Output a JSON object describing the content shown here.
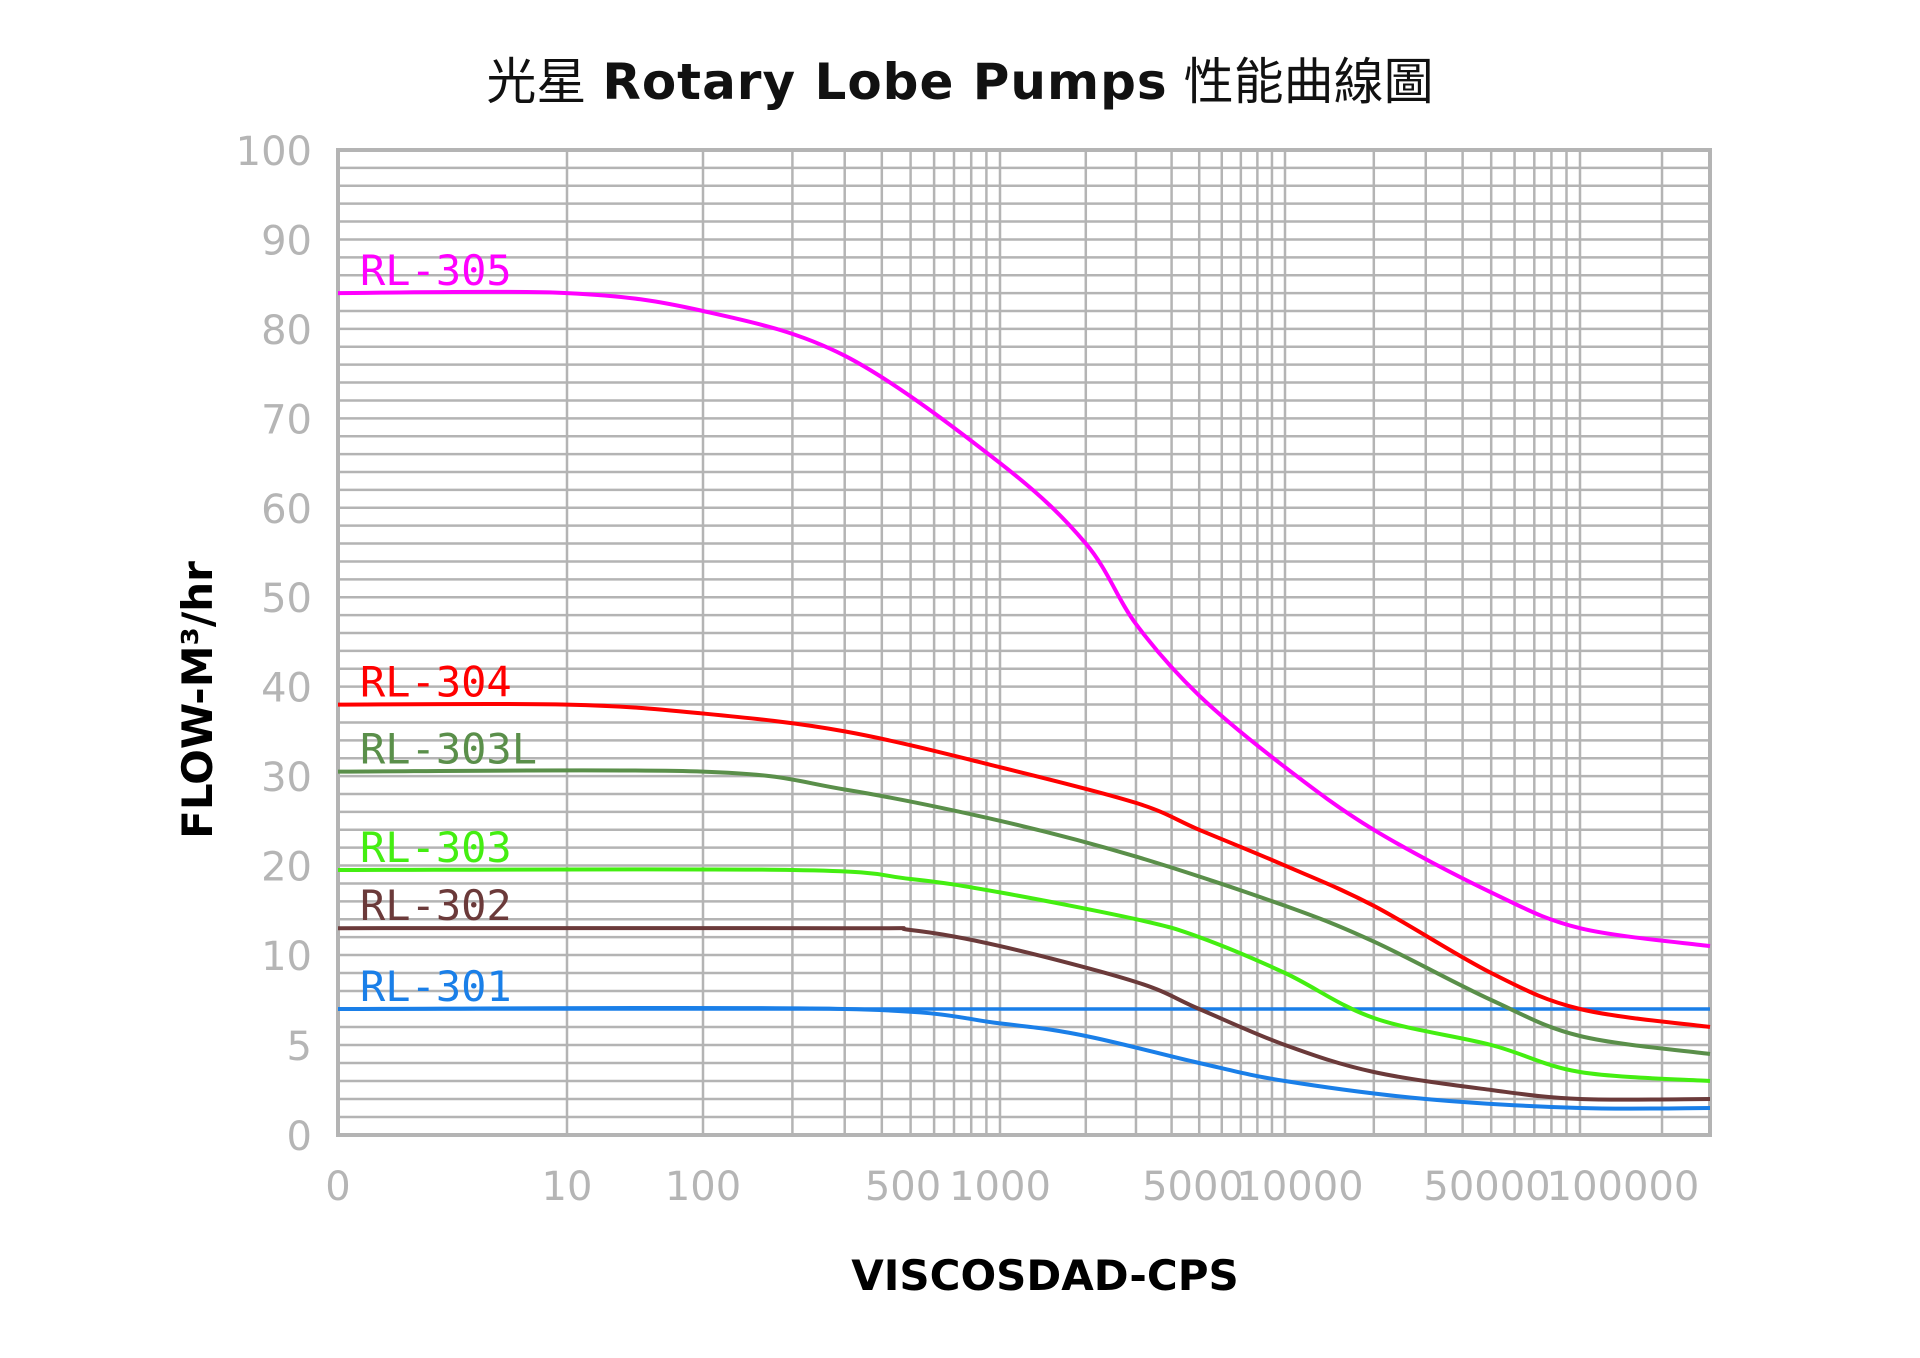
{
  "chart_data": {
    "type": "line",
    "title_zh_prefix": "光星",
    "title_en": "Rotary Lobe Pumps",
    "title_zh_suffix": "性能曲線圖",
    "xlabel": "VISCOSDAD-CPS",
    "ylabel": "FLOW-M³/hr",
    "x_ticks": [
      "0",
      "10",
      "100",
      "500",
      "1000",
      "5000",
      "10000",
      "50000",
      "100000"
    ],
    "y_ticks": [
      "0",
      "5",
      "10",
      "20",
      "30",
      "40",
      "50",
      "60",
      "70",
      "80",
      "90",
      "100"
    ],
    "grid": true,
    "series": [
      {
        "name": "RL-305",
        "color": "#ff00ff",
        "points": [
          [
            0,
            84
          ],
          [
            10,
            84
          ],
          [
            100,
            82
          ],
          [
            300,
            77
          ],
          [
            1000,
            65
          ],
          [
            2000,
            56
          ],
          [
            3000,
            47
          ],
          [
            5000,
            39
          ],
          [
            10000,
            31
          ],
          [
            20000,
            24
          ],
          [
            50000,
            17
          ],
          [
            100000,
            13
          ],
          [
            300000,
            11
          ]
        ]
      },
      {
        "name": "RL-304",
        "color": "#ff0000",
        "points": [
          [
            0,
            38
          ],
          [
            10,
            38
          ],
          [
            100,
            37
          ],
          [
            300,
            35
          ],
          [
            1000,
            31
          ],
          [
            3000,
            27
          ],
          [
            5000,
            24
          ],
          [
            10000,
            20
          ],
          [
            20000,
            15.5
          ],
          [
            50000,
            9
          ],
          [
            100000,
            7
          ],
          [
            300000,
            6
          ]
        ]
      },
      {
        "name": "RL-303L",
        "color": "#5a8f4a",
        "points": [
          [
            0,
            30.5
          ],
          [
            100,
            30.5
          ],
          [
            300,
            28.5
          ],
          [
            1000,
            25
          ],
          [
            3000,
            21
          ],
          [
            10000,
            15.5
          ],
          [
            20000,
            11.5
          ],
          [
            50000,
            7.5
          ],
          [
            100000,
            5.5
          ],
          [
            300000,
            4.5
          ]
        ]
      },
      {
        "name": "RL-303",
        "color": "#44ee11",
        "points": [
          [
            0,
            19.5
          ],
          [
            200,
            19.5
          ],
          [
            500,
            18.5
          ],
          [
            1000,
            17
          ],
          [
            3000,
            14
          ],
          [
            5000,
            12
          ],
          [
            10000,
            9
          ],
          [
            20000,
            6.5
          ],
          [
            50000,
            5
          ],
          [
            100000,
            3.5
          ],
          [
            300000,
            3
          ]
        ]
      },
      {
        "name": "RL-302",
        "color": "#6b3a3a",
        "points": [
          [
            0,
            13
          ],
          [
            300,
            13
          ],
          [
            500,
            12.8
          ],
          [
            1000,
            11
          ],
          [
            3000,
            8.5
          ],
          [
            5000,
            7
          ],
          [
            10000,
            5
          ],
          [
            20000,
            3.5
          ],
          [
            50000,
            2.5
          ],
          [
            100000,
            2
          ],
          [
            300000,
            2
          ]
        ]
      },
      {
        "name": "RL-301",
        "color": "#1a7fe8",
        "points": [
          [
            0,
            7
          ],
          [
            300,
            7
          ],
          [
            1000,
            6.2
          ],
          [
            2000,
            5.5
          ],
          [
            5000,
            4
          ],
          [
            10000,
            3
          ],
          [
            30000,
            2
          ],
          [
            100000,
            1.5
          ],
          [
            300000,
            1.5
          ]
        ]
      }
    ],
    "reference_line": {
      "y": 7,
      "color": "#1a7fe8"
    }
  }
}
